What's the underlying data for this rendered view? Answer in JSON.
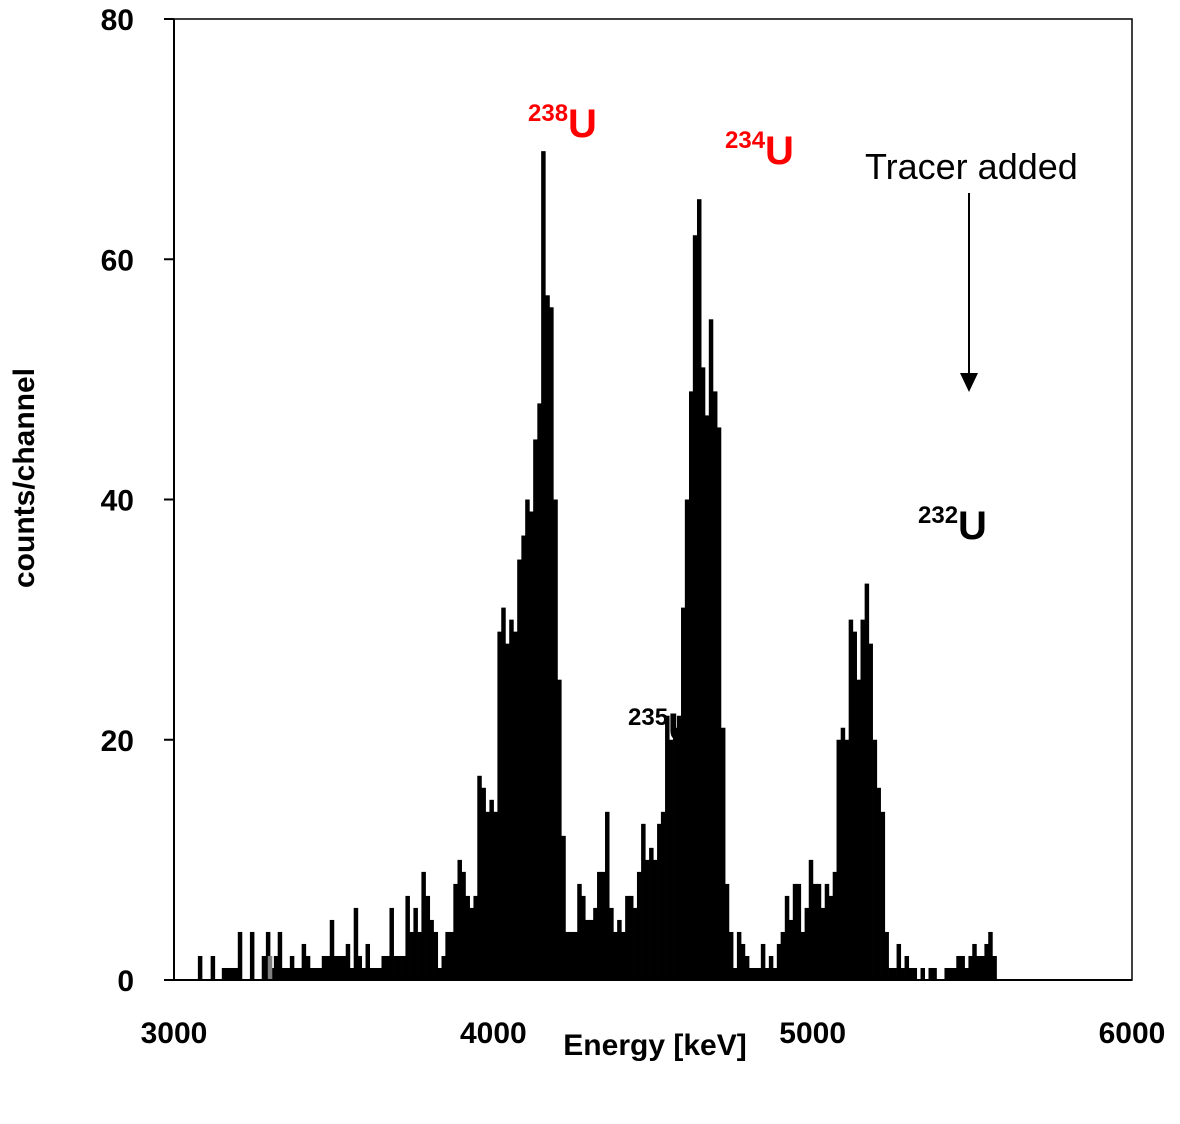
{
  "chart_data": {
    "type": "bar",
    "title": "",
    "xlabel": "Energy [keV]",
    "ylabel": "counts/channel",
    "xlim": [
      3000,
      6000
    ],
    "ylim": [
      0,
      80
    ],
    "xticks": [
      "3000",
      "4000",
      "5000",
      "6000"
    ],
    "yticks": [
      "0",
      "20",
      "40",
      "60",
      "80"
    ],
    "grid": false,
    "bar_color": "#000000",
    "bin_width_kev": 12.5,
    "bins": [
      [
        3081,
        2
      ],
      [
        3121,
        2
      ],
      [
        3156,
        1
      ],
      [
        3169,
        1
      ],
      [
        3181,
        1
      ],
      [
        3194,
        1
      ],
      [
        3206,
        4
      ],
      [
        3244,
        4
      ],
      [
        3281,
        2
      ],
      [
        3294,
        4
      ],
      [
        3306,
        1
      ],
      [
        3319,
        2
      ],
      [
        3331,
        4
      ],
      [
        3344,
        1
      ],
      [
        3356,
        1
      ],
      [
        3369,
        2
      ],
      [
        3381,
        1
      ],
      [
        3394,
        1
      ],
      [
        3406,
        3
      ],
      [
        3419,
        2
      ],
      [
        3431,
        1
      ],
      [
        3444,
        1
      ],
      [
        3456,
        1
      ],
      [
        3469,
        2
      ],
      [
        3481,
        2
      ],
      [
        3494,
        5
      ],
      [
        3506,
        2
      ],
      [
        3519,
        2
      ],
      [
        3531,
        2
      ],
      [
        3544,
        3
      ],
      [
        3556,
        1
      ],
      [
        3569,
        6
      ],
      [
        3581,
        2
      ],
      [
        3594,
        1
      ],
      [
        3606,
        3
      ],
      [
        3619,
        1
      ],
      [
        3631,
        1
      ],
      [
        3644,
        1
      ],
      [
        3656,
        2
      ],
      [
        3669,
        2
      ],
      [
        3681,
        6
      ],
      [
        3694,
        2
      ],
      [
        3706,
        2
      ],
      [
        3719,
        2
      ],
      [
        3731,
        7
      ],
      [
        3744,
        4
      ],
      [
        3756,
        6
      ],
      [
        3769,
        4
      ],
      [
        3781,
        9
      ],
      [
        3794,
        7
      ],
      [
        3806,
        5
      ],
      [
        3819,
        4
      ],
      [
        3831,
        1
      ],
      [
        3844,
        2
      ],
      [
        3856,
        4
      ],
      [
        3869,
        4
      ],
      [
        3881,
        8
      ],
      [
        3894,
        10
      ],
      [
        3906,
        9
      ],
      [
        3919,
        7
      ],
      [
        3931,
        6
      ],
      [
        3944,
        7
      ],
      [
        3956,
        17
      ],
      [
        3969,
        16
      ],
      [
        3981,
        14
      ],
      [
        3994,
        15
      ],
      [
        4006,
        14
      ],
      [
        4019,
        29
      ],
      [
        4031,
        31
      ],
      [
        4044,
        28
      ],
      [
        4056,
        30
      ],
      [
        4069,
        29
      ],
      [
        4081,
        35
      ],
      [
        4094,
        37
      ],
      [
        4106,
        40
      ],
      [
        4119,
        39
      ],
      [
        4131,
        45
      ],
      [
        4144,
        48
      ],
      [
        4156,
        69
      ],
      [
        4169,
        57
      ],
      [
        4181,
        56
      ],
      [
        4194,
        40
      ],
      [
        4206,
        25
      ],
      [
        4219,
        12
      ],
      [
        4231,
        4
      ],
      [
        4244,
        4
      ],
      [
        4256,
        4
      ],
      [
        4269,
        8
      ],
      [
        4281,
        7
      ],
      [
        4294,
        5
      ],
      [
        4306,
        5
      ],
      [
        4319,
        6
      ],
      [
        4331,
        9
      ],
      [
        4344,
        9
      ],
      [
        4356,
        14
      ],
      [
        4369,
        6
      ],
      [
        4381,
        4
      ],
      [
        4394,
        5
      ],
      [
        4406,
        4
      ],
      [
        4419,
        7
      ],
      [
        4431,
        7
      ],
      [
        4444,
        6
      ],
      [
        4456,
        9
      ],
      [
        4469,
        13
      ],
      [
        4481,
        10
      ],
      [
        4494,
        11
      ],
      [
        4506,
        10
      ],
      [
        4519,
        13
      ],
      [
        4531,
        14
      ],
      [
        4544,
        22
      ],
      [
        4556,
        20
      ],
      [
        4569,
        21
      ],
      [
        4581,
        22
      ],
      [
        4594,
        31
      ],
      [
        4606,
        40
      ],
      [
        4619,
        49
      ],
      [
        4631,
        62
      ],
      [
        4644,
        65
      ],
      [
        4656,
        51
      ],
      [
        4669,
        47
      ],
      [
        4681,
        55
      ],
      [
        4694,
        49
      ],
      [
        4706,
        46
      ],
      [
        4719,
        21
      ],
      [
        4731,
        8
      ],
      [
        4744,
        4
      ],
      [
        4756,
        1
      ],
      [
        4769,
        4
      ],
      [
        4781,
        3
      ],
      [
        4794,
        2
      ],
      [
        4806,
        1
      ],
      [
        4819,
        1
      ],
      [
        4831,
        1
      ],
      [
        4844,
        3
      ],
      [
        4856,
        1
      ],
      [
        4869,
        2
      ],
      [
        4881,
        1
      ],
      [
        4894,
        3
      ],
      [
        4906,
        4
      ],
      [
        4919,
        7
      ],
      [
        4931,
        5
      ],
      [
        4944,
        8
      ],
      [
        4956,
        8
      ],
      [
        4969,
        4
      ],
      [
        4981,
        6
      ],
      [
        4994,
        10
      ],
      [
        5006,
        8
      ],
      [
        5019,
        8
      ],
      [
        5031,
        6
      ],
      [
        5044,
        8
      ],
      [
        5056,
        7
      ],
      [
        5069,
        9
      ],
      [
        5081,
        20
      ],
      [
        5094,
        21
      ],
      [
        5106,
        20
      ],
      [
        5119,
        30
      ],
      [
        5131,
        29
      ],
      [
        5144,
        25
      ],
      [
        5156,
        30
      ],
      [
        5169,
        33
      ],
      [
        5181,
        28
      ],
      [
        5194,
        20
      ],
      [
        5206,
        16
      ],
      [
        5219,
        14
      ],
      [
        5231,
        4
      ],
      [
        5244,
        1
      ],
      [
        5256,
        1
      ],
      [
        5269,
        3
      ],
      [
        5281,
        1
      ],
      [
        5294,
        2
      ],
      [
        5306,
        1
      ],
      [
        5319,
        1
      ],
      [
        5344,
        1
      ],
      [
        5369,
        1
      ],
      [
        5381,
        1
      ],
      [
        5419,
        1
      ],
      [
        5431,
        1
      ],
      [
        5444,
        1
      ],
      [
        5456,
        2
      ],
      [
        5469,
        2
      ],
      [
        5481,
        1
      ],
      [
        5494,
        2
      ],
      [
        5506,
        3
      ],
      [
        5519,
        2
      ],
      [
        5531,
        2
      ],
      [
        5544,
        3
      ],
      [
        5556,
        4
      ],
      [
        5569,
        2
      ]
    ],
    "highlight_bins": [
      [
        3300,
        2
      ]
    ],
    "highlight_color": "#808080",
    "annotations": [
      {
        "mass": "238",
        "symbol": "U",
        "color": "#ff0000"
      },
      {
        "mass": "234",
        "symbol": "U",
        "color": "#ff0000"
      },
      {
        "mass": "235",
        "symbol": "U",
        "color": "#000000"
      },
      {
        "mass": "232",
        "symbol": "U",
        "color": "#000000"
      },
      {
        "text": "Tracer added"
      }
    ]
  }
}
